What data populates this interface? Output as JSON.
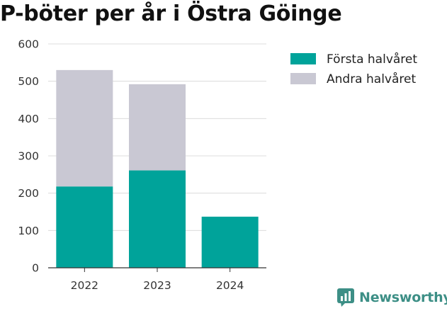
{
  "chart_data": {
    "type": "bar",
    "stacked": true,
    "title": "P-böter per år i Östra Göinge",
    "categories": [
      "2022",
      "2023",
      "2024"
    ],
    "series": [
      {
        "name": "Första halvåret",
        "values": [
          218,
          261,
          137
        ],
        "color": "#00a39a"
      },
      {
        "name": "Andra halvåret",
        "values": [
          312,
          231,
          0
        ],
        "color": "#c9c8d3"
      }
    ],
    "ylim": [
      0,
      600
    ],
    "yticks": [
      0,
      100,
      200,
      300,
      400,
      500,
      600
    ],
    "grid": true,
    "legend_position": "top-right"
  },
  "brand": {
    "name": "Newsworthy",
    "icon": "newsworthy-logo-icon",
    "color": "#3d8f86"
  }
}
